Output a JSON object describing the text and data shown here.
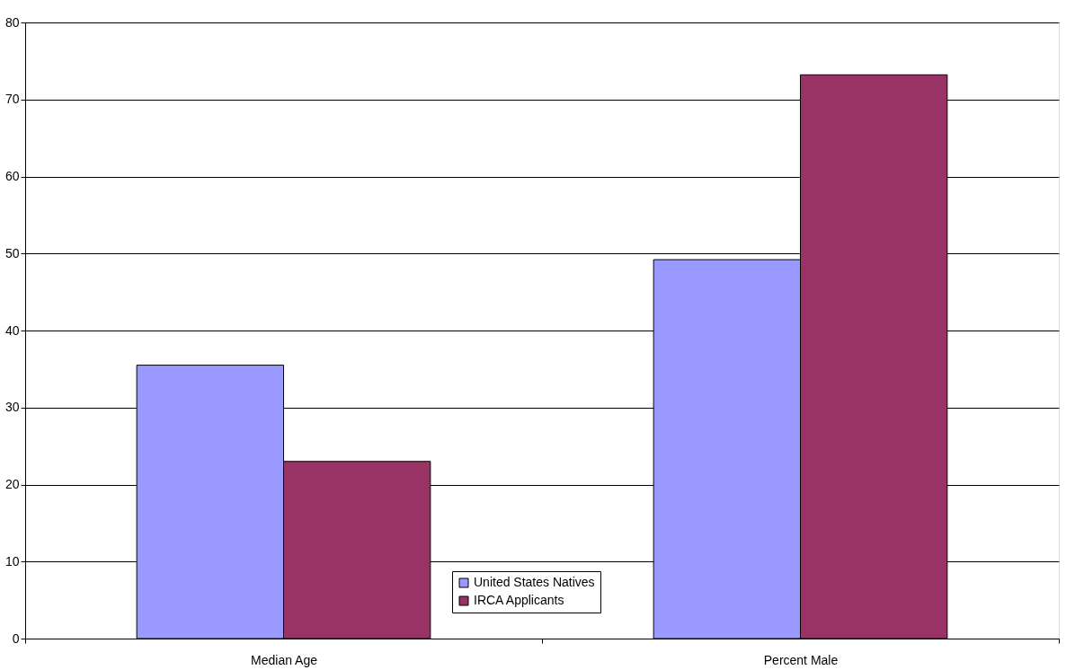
{
  "chart_data": {
    "type": "bar",
    "categories": [
      "Median Age",
      "Percent Male"
    ],
    "series": [
      {
        "name": "United States Natives",
        "color": "#9999ff",
        "values": [
          35.5,
          49.2
        ]
      },
      {
        "name": "IRCA Applicants",
        "color": "#993366",
        "values": [
          23.0,
          73.2
        ]
      }
    ],
    "ylim": [
      0,
      80
    ],
    "yticks": [
      0,
      10,
      20,
      30,
      40,
      50,
      60,
      70,
      80
    ],
    "grid": "y",
    "legend": "bottom"
  }
}
